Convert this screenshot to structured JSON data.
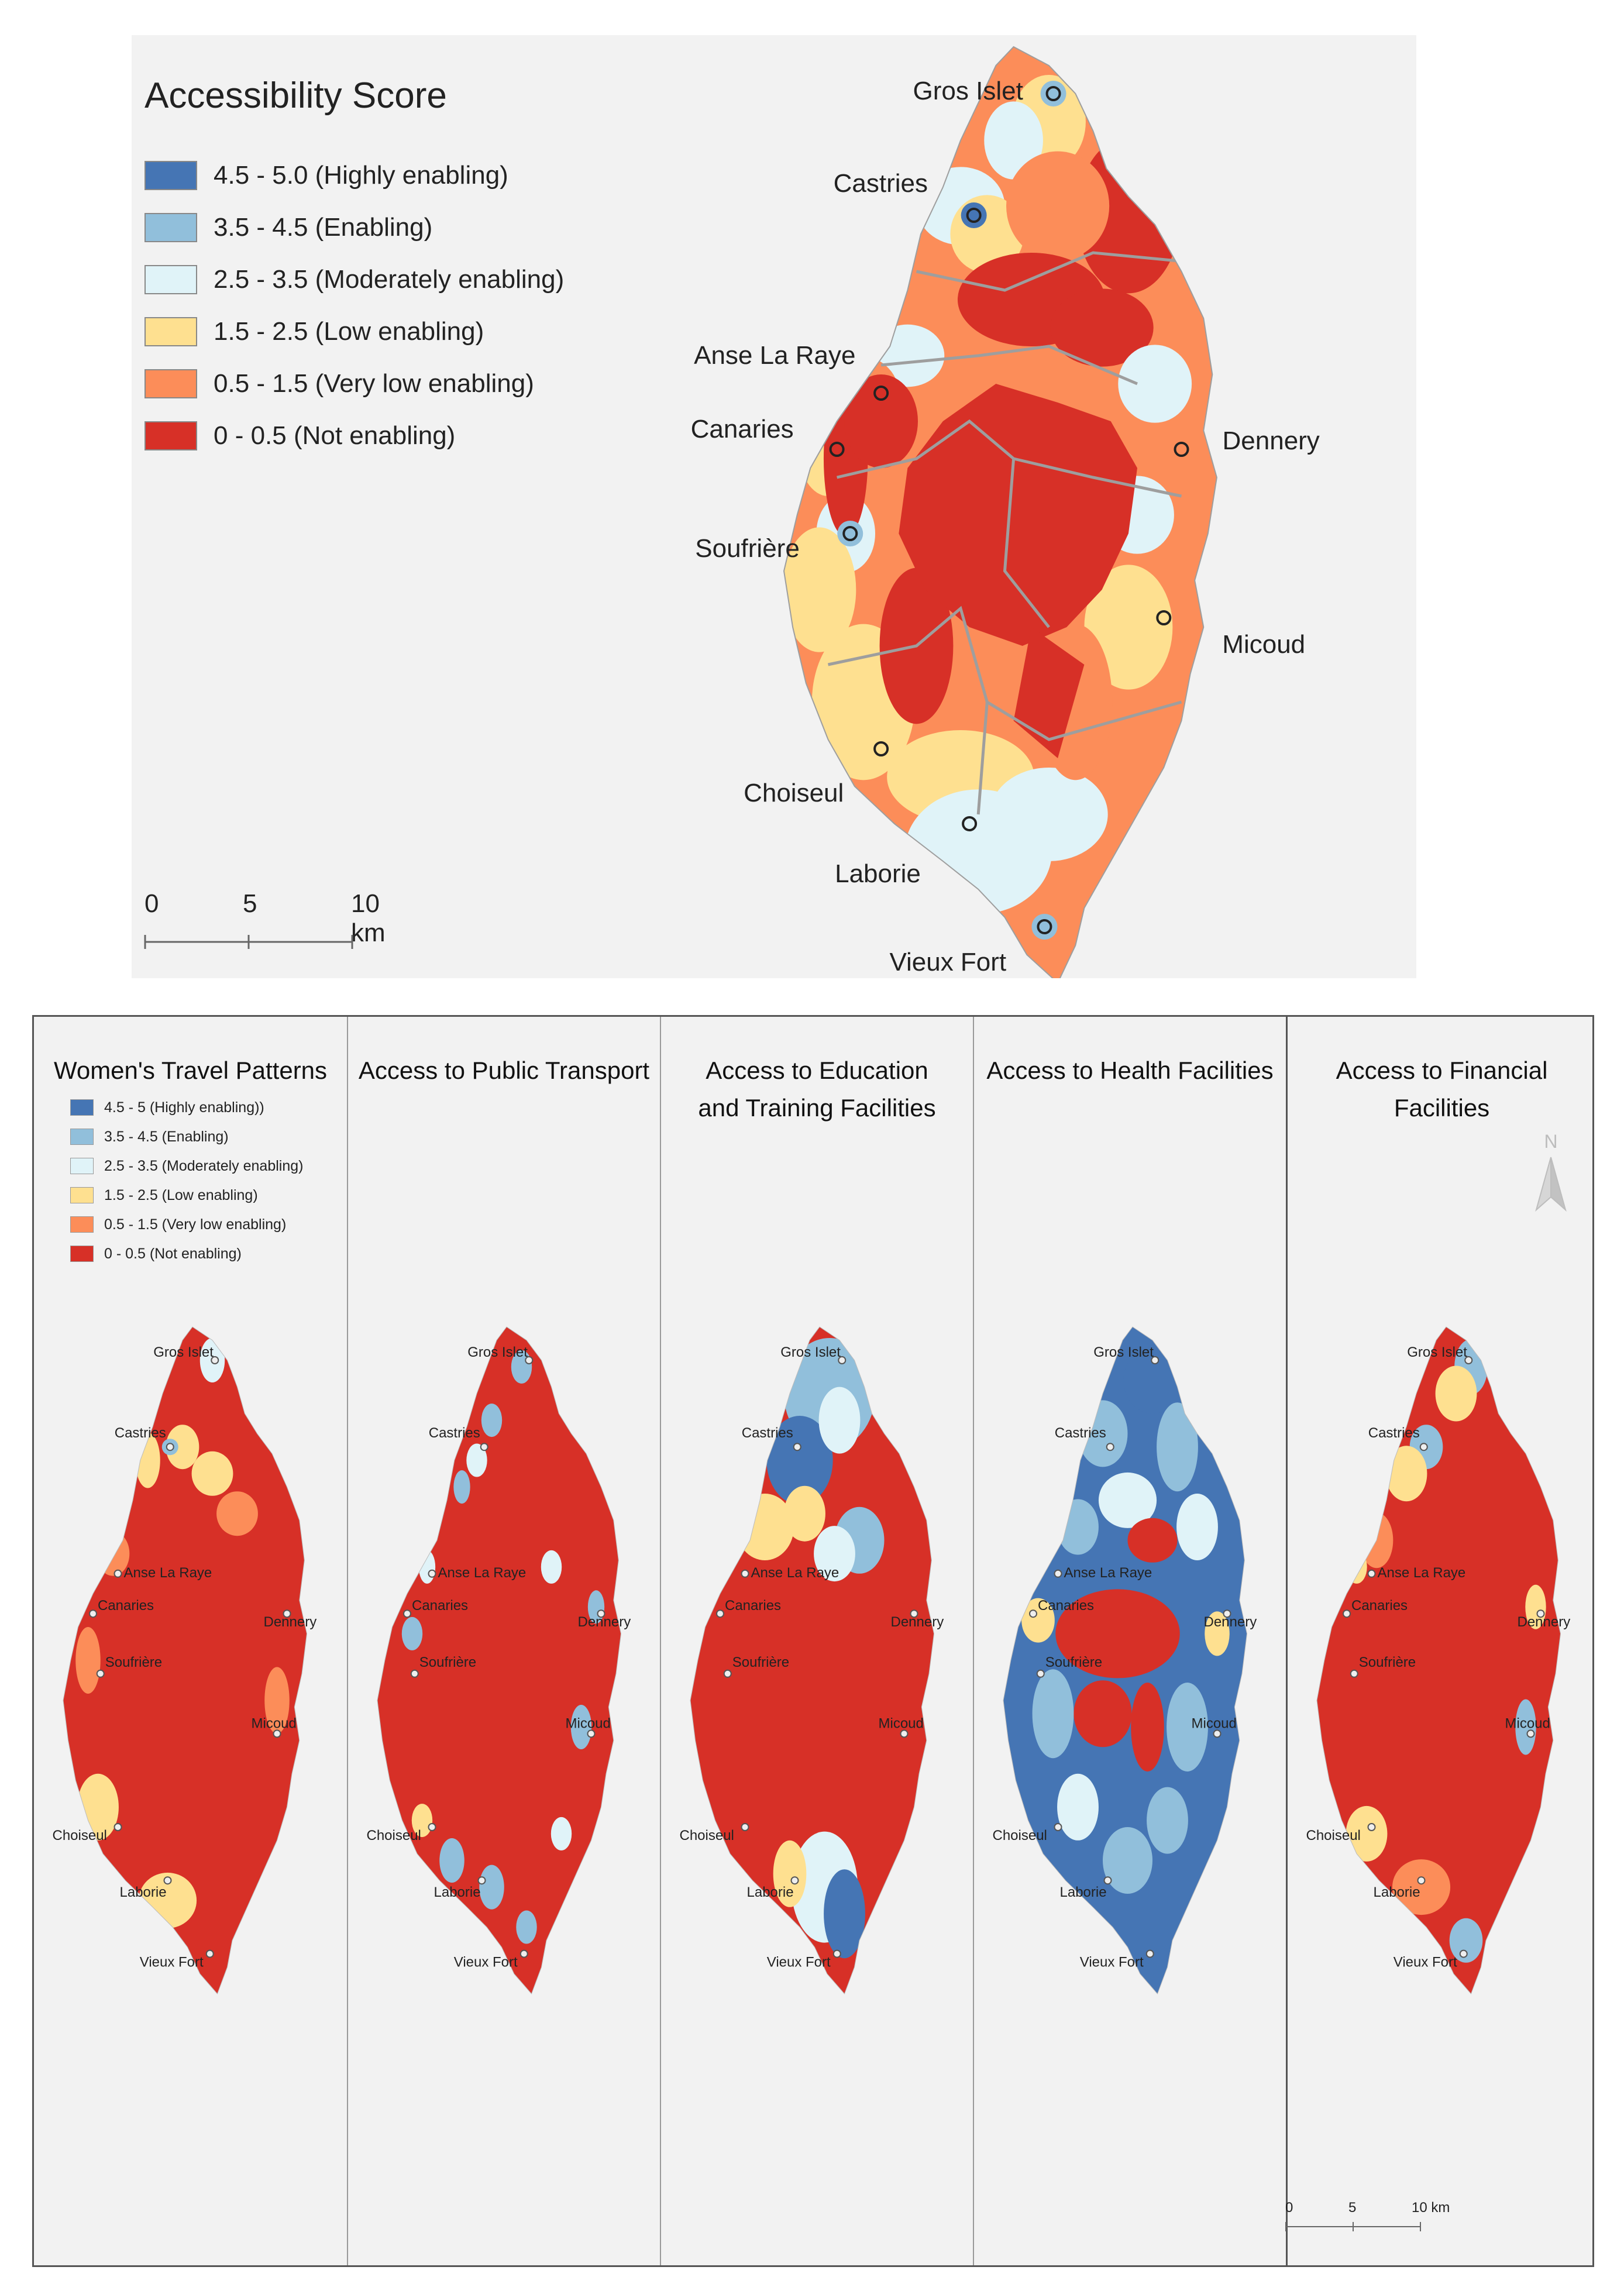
{
  "colors": {
    "highly_enabling": "#4575b4",
    "enabling": "#91bfdb",
    "moderately_enabling": "#e0f3f8",
    "low_enabling": "#fee090",
    "very_low_enabling": "#fc8d59",
    "not_enabling": "#d73027",
    "boundary": "#9e9e9e",
    "background": "#f2f2f2"
  },
  "main_map": {
    "legend_title": "Accessibility Score",
    "legend": [
      {
        "label": "4.5 - 5.0 (Highly enabling)",
        "color": "#4575b4"
      },
      {
        "label": "3.5 - 4.5 (Enabling)",
        "color": "#91bfdb"
      },
      {
        "label": "2.5 - 3.5 (Moderately enabling)",
        "color": "#e0f3f8"
      },
      {
        "label": "1.5 - 2.5 (Low enabling)",
        "color": "#fee090"
      },
      {
        "label": "0.5 - 1.5 (Very low enabling)",
        "color": "#fc8d59"
      },
      {
        "label": "0 - 0.5 (Not enabling)",
        "color": "#d73027"
      }
    ],
    "scale_bar": {
      "ticks": [
        "0",
        "5",
        "10 km"
      ]
    },
    "towns": [
      "Gros Islet",
      "Castries",
      "Anse La Raye",
      "Canaries",
      "Dennery",
      "Soufrière",
      "Micoud",
      "Choiseul",
      "Laborie",
      "Vieux Fort"
    ]
  },
  "sub_maps": {
    "titles": [
      "Women's Travel Patterns",
      "Access to Public Transport",
      "Access to Education and Training Facilities",
      "Access to Health Facilities",
      "Access to Financial Facilities"
    ],
    "legend": [
      {
        "label": "4.5 - 5 (Highly enabling))",
        "color": "#4575b4"
      },
      {
        "label": "3.5 - 4.5 (Enabling)",
        "color": "#91bfdb"
      },
      {
        "label": "2.5 - 3.5 (Moderately enabling)",
        "color": "#e0f3f8"
      },
      {
        "label": "1.5 - 2.5 (Low enabling)",
        "color": "#fee090"
      },
      {
        "label": "0.5 - 1.5 (Very low enabling)",
        "color": "#fc8d59"
      },
      {
        "label": "0 - 0.5 (Not enabling)",
        "color": "#d73027"
      }
    ],
    "north_label": "N",
    "scale_bar": {
      "ticks": [
        "0",
        "5",
        "10 km"
      ]
    }
  }
}
